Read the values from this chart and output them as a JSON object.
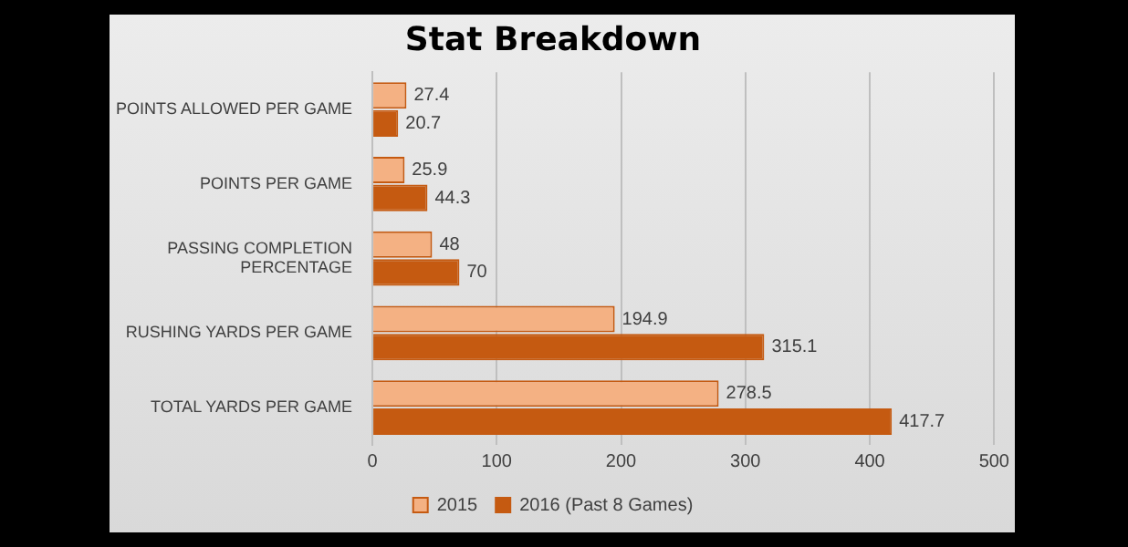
{
  "chart_data": {
    "type": "bar",
    "orientation": "horizontal",
    "title": "Stat Breakdown",
    "categories": [
      "POINTS ALLOWED PER GAME",
      "POINTS PER GAME",
      "PASSING COMPLETION PERCENTAGE",
      "RUSHING YARDS PER GAME",
      "TOTAL YARDS PER GAME"
    ],
    "series": [
      {
        "name": "2015",
        "color": "#f4b183",
        "values": [
          27.4,
          25.9,
          48,
          194.9,
          278.5
        ]
      },
      {
        "name": "2016 (Past 8 Games)",
        "color": "#c55a11",
        "values": [
          20.7,
          44.3,
          70,
          315.1,
          417.7
        ]
      }
    ],
    "xlim": [
      0,
      500
    ],
    "xticks": [
      0,
      100,
      200,
      300,
      400,
      500
    ],
    "grid": "x",
    "legend": "bottom",
    "data_labels": true
  }
}
